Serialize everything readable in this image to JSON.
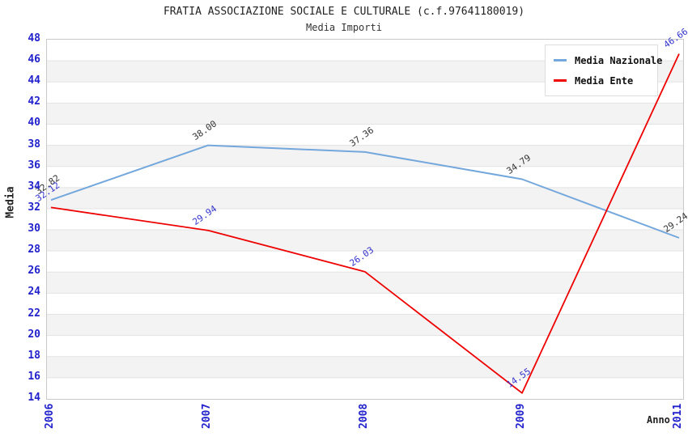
{
  "header": {
    "title": "FRATIA ASSOCIAZIONE SOCIALE E CULTURALE (c.f.97641180019)",
    "subtitle": "Media Importi"
  },
  "chart_data": {
    "type": "line",
    "title": "FRATIA ASSOCIAZIONE SOCIALE E CULTURALE (c.f.97641180019)",
    "subtitle": "Media Importi",
    "xlabel": "Anno",
    "ylabel": "Media",
    "categories": [
      "2006",
      "2007",
      "2008",
      "2009",
      "2011"
    ],
    "series": [
      {
        "name": "Media Nazionale",
        "color": "#74a7dc",
        "label_color": "#333333",
        "values": [
          32.82,
          38.0,
          37.36,
          34.79,
          29.24
        ]
      },
      {
        "name": "Media Ente",
        "color": "#ee0000",
        "label_color": "#3333cc",
        "values": [
          32.12,
          29.94,
          26.03,
          14.55,
          46.66
        ]
      }
    ],
    "ylim": [
      14,
      48
    ],
    "y_ticks": [
      48,
      46,
      44,
      42,
      40,
      38,
      36,
      34,
      32,
      30,
      28,
      26,
      24,
      22,
      20,
      18,
      16,
      14
    ],
    "grid": true,
    "banded_background": true,
    "legend_position": "top-right",
    "styles": {
      "tick_color": "#2222cc",
      "band_color": "#f3f3f3",
      "grid_color": "#e3e3e3",
      "plot_border_color": "#c9c9c9",
      "line_widths": [
        2,
        1.8
      ]
    }
  }
}
